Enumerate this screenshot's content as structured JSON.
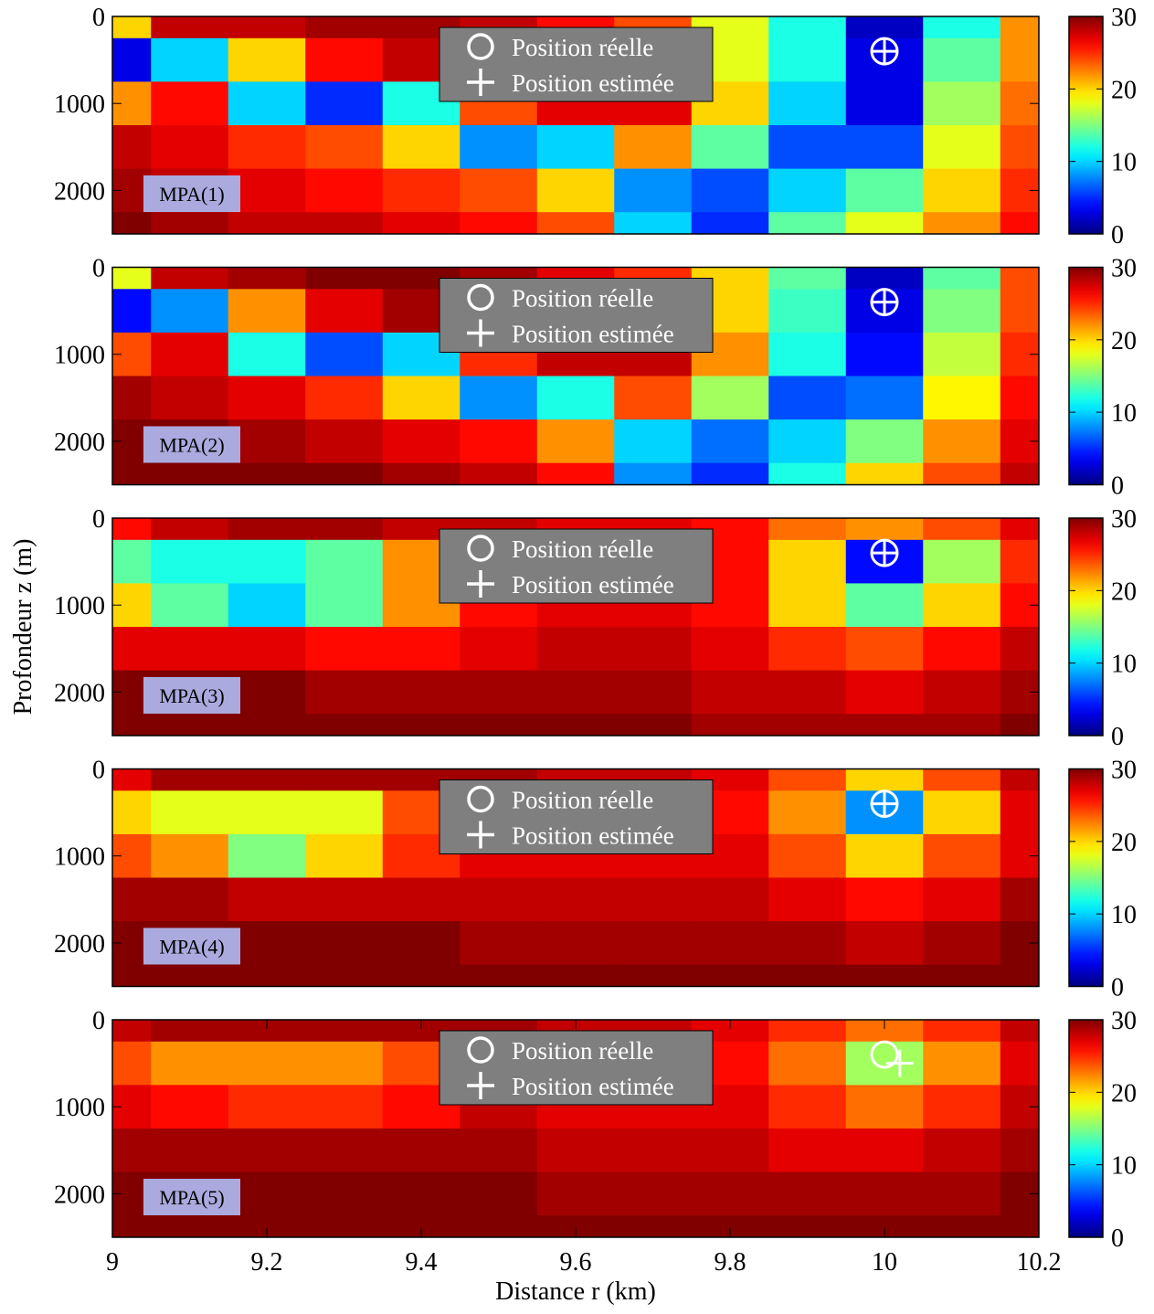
{
  "chart_data": [
    {
      "type": "heatmap",
      "label": "MPA(1)",
      "colormap": "jet",
      "y_reversed": true,
      "x": [
        9,
        9.1,
        9.2,
        9.3,
        9.4,
        9.5,
        9.6,
        9.7,
        9.8,
        9.9,
        10,
        10.1,
        10.2
      ],
      "y": [
        0,
        500,
        1000,
        1500,
        2000,
        2500
      ],
      "values": [
        [
          20,
          28,
          28,
          29,
          29,
          28,
          26,
          24,
          18,
          12,
          2,
          12,
          22
        ],
        [
          3,
          10,
          20,
          26,
          28,
          28,
          27,
          25,
          18,
          12,
          3,
          14,
          22
        ],
        [
          22,
          26,
          10,
          5,
          12,
          24,
          27,
          27,
          20,
          10,
          3,
          16,
          23
        ],
        [
          28,
          27,
          25,
          24,
          20,
          8,
          10,
          22,
          14,
          6,
          6,
          18,
          24
        ],
        [
          29,
          28,
          27,
          26,
          25,
          24,
          20,
          8,
          6,
          10,
          14,
          20,
          25
        ],
        [
          30,
          29,
          28,
          28,
          27,
          26,
          24,
          10,
          5,
          14,
          18,
          22,
          26
        ]
      ],
      "xlim": [
        9,
        10.2
      ],
      "ylim": [
        0,
        2500
      ],
      "yticks": [
        0,
        1000,
        2000
      ],
      "clim": [
        0,
        30
      ],
      "cticks": [
        0,
        10,
        20,
        30
      ],
      "legend": [
        "Position réelle",
        "Position estimée"
      ],
      "true_position": {
        "r": 10,
        "z": 400
      },
      "estimated_position": {
        "r": 10,
        "z": 400
      }
    },
    {
      "type": "heatmap",
      "label": "MPA(2)",
      "colormap": "jet",
      "y_reversed": true,
      "x": [
        9,
        9.1,
        9.2,
        9.3,
        9.4,
        9.5,
        9.6,
        9.7,
        9.8,
        9.9,
        10,
        10.1,
        10.2
      ],
      "y": [
        0,
        500,
        1000,
        1500,
        2000,
        2500
      ],
      "values": [
        [
          18,
          28,
          29,
          30,
          30,
          29,
          27,
          25,
          20,
          14,
          2,
          14,
          24
        ],
        [
          4,
          8,
          22,
          27,
          29,
          29,
          28,
          26,
          20,
          13,
          3,
          15,
          24
        ],
        [
          24,
          27,
          12,
          6,
          10,
          25,
          28,
          28,
          22,
          12,
          4,
          17,
          25
        ],
        [
          29,
          28,
          27,
          25,
          20,
          8,
          12,
          24,
          16,
          6,
          7,
          19,
          26
        ],
        [
          30,
          30,
          29,
          28,
          27,
          26,
          22,
          10,
          7,
          10,
          15,
          22,
          27
        ],
        [
          30,
          30,
          30,
          30,
          29,
          28,
          26,
          8,
          5,
          12,
          20,
          24,
          28
        ]
      ],
      "xlim": [
        9,
        10.2
      ],
      "ylim": [
        0,
        2500
      ],
      "yticks": [
        0,
        1000,
        2000
      ],
      "clim": [
        0,
        30
      ],
      "cticks": [
        0,
        10,
        20,
        30
      ],
      "legend": [
        "Position réelle",
        "Position estimée"
      ],
      "true_position": {
        "r": 10,
        "z": 400
      },
      "estimated_position": {
        "r": 10,
        "z": 400
      }
    },
    {
      "type": "heatmap",
      "label": "MPA(3)",
      "colormap": "jet",
      "y_reversed": true,
      "ylabel": "Profondeur z (m)",
      "x": [
        9,
        9.1,
        9.2,
        9.3,
        9.4,
        9.5,
        9.6,
        9.7,
        9.8,
        9.9,
        10,
        10.1,
        10.2
      ],
      "y": [
        0,
        500,
        1000,
        1500,
        2000,
        2500
      ],
      "values": [
        [
          26,
          28,
          29,
          29,
          28,
          28,
          27,
          27,
          26,
          23,
          22,
          24,
          27
        ],
        [
          14,
          12,
          12,
          14,
          22,
          26,
          27,
          27,
          26,
          20,
          4,
          16,
          25
        ],
        [
          20,
          14,
          10,
          14,
          22,
          26,
          27,
          27,
          26,
          20,
          14,
          20,
          26
        ],
        [
          27,
          27,
          27,
          26,
          26,
          27,
          28,
          28,
          27,
          25,
          24,
          26,
          28
        ],
        [
          30,
          30,
          30,
          29,
          29,
          29,
          29,
          29,
          28,
          28,
          27,
          28,
          29
        ],
        [
          30,
          30,
          30,
          30,
          30,
          30,
          30,
          30,
          29,
          29,
          29,
          29,
          30
        ]
      ],
      "xlim": [
        9,
        10.2
      ],
      "ylim": [
        0,
        2500
      ],
      "yticks": [
        0,
        1000,
        2000
      ],
      "clim": [
        0,
        30
      ],
      "cticks": [
        0,
        10,
        20,
        30
      ],
      "legend": [
        "Position réelle",
        "Position estimée"
      ],
      "true_position": {
        "r": 10,
        "z": 400
      },
      "estimated_position": {
        "r": 10,
        "z": 400
      }
    },
    {
      "type": "heatmap",
      "label": "MPA(4)",
      "colormap": "jet",
      "y_reversed": true,
      "x": [
        9,
        9.1,
        9.2,
        9.3,
        9.4,
        9.5,
        9.6,
        9.7,
        9.8,
        9.9,
        10,
        10.1,
        10.2
      ],
      "y": [
        0,
        500,
        1000,
        1500,
        2000,
        2500
      ],
      "values": [
        [
          27,
          29,
          29,
          29,
          29,
          29,
          28,
          28,
          27,
          24,
          20,
          24,
          28
        ],
        [
          20,
          18,
          18,
          18,
          24,
          27,
          27,
          27,
          26,
          22,
          8,
          20,
          27
        ],
        [
          24,
          22,
          15,
          20,
          25,
          27,
          27,
          27,
          27,
          24,
          20,
          24,
          27
        ],
        [
          29,
          29,
          28,
          28,
          28,
          28,
          28,
          28,
          28,
          27,
          26,
          27,
          29
        ],
        [
          30,
          30,
          30,
          30,
          30,
          29,
          29,
          29,
          29,
          29,
          28,
          29,
          30
        ],
        [
          30,
          30,
          30,
          30,
          30,
          30,
          30,
          30,
          30,
          30,
          30,
          30,
          30
        ]
      ],
      "xlim": [
        9,
        10.2
      ],
      "ylim": [
        0,
        2500
      ],
      "yticks": [
        0,
        1000,
        2000
      ],
      "clim": [
        0,
        30
      ],
      "cticks": [
        0,
        10,
        20,
        30
      ],
      "legend": [
        "Position réelle",
        "Position estimée"
      ],
      "true_position": {
        "r": 10,
        "z": 400
      },
      "estimated_position": {
        "r": 10,
        "z": 400
      }
    },
    {
      "type": "heatmap",
      "label": "MPA(5)",
      "colormap": "jet",
      "y_reversed": true,
      "xlabel": "Distance r (km)",
      "x": [
        9,
        9.1,
        9.2,
        9.3,
        9.4,
        9.5,
        9.6,
        9.7,
        9.8,
        9.9,
        10,
        10.1,
        10.2
      ],
      "y": [
        0,
        500,
        1000,
        1500,
        2000,
        2500
      ],
      "values": [
        [
          28,
          29,
          29,
          29,
          29,
          29,
          28,
          28,
          27,
          25,
          23,
          25,
          28
        ],
        [
          24,
          22,
          22,
          22,
          24,
          27,
          27,
          27,
          26,
          23,
          16,
          22,
          27
        ],
        [
          27,
          26,
          25,
          25,
          26,
          28,
          27,
          27,
          27,
          25,
          23,
          25,
          28
        ],
        [
          29,
          29,
          29,
          29,
          29,
          29,
          28,
          28,
          28,
          27,
          27,
          28,
          29
        ],
        [
          30,
          30,
          30,
          30,
          30,
          30,
          29,
          29,
          29,
          29,
          29,
          29,
          30
        ],
        [
          30,
          30,
          30,
          30,
          30,
          30,
          30,
          30,
          30,
          30,
          30,
          30,
          30
        ]
      ],
      "xlim": [
        9,
        10.2
      ],
      "ylim": [
        0,
        2500
      ],
      "yticks": [
        0,
        1000,
        2000
      ],
      "xticks": [
        9,
        9.2,
        9.4,
        9.6,
        9.8,
        10,
        10.2
      ],
      "clim": [
        0,
        30
      ],
      "cticks": [
        0,
        10,
        20,
        30
      ],
      "legend": [
        "Position réelle",
        "Position estimée"
      ],
      "true_position": {
        "r": 10,
        "z": 400
      },
      "estimated_position": {
        "r": 10.02,
        "z": 500
      }
    }
  ]
}
